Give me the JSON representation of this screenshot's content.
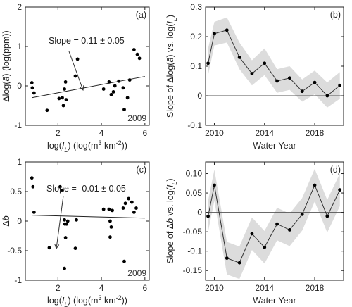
{
  "chart_data": [
    {
      "type": "scatter",
      "panel_label": "(a)",
      "xlabel_parts": [
        "log(",
        "I",
        "L",
        ")  (log(m",
        "3",
        " km",
        "-2",
        "))"
      ],
      "ylabel_parts": [
        "Δlog(",
        "ā",
        ") (log(ppm))"
      ],
      "xlim": [
        0.5,
        6.2
      ],
      "ylim": [
        -1,
        2
      ],
      "xticks": [
        "2",
        "4",
        "6"
      ],
      "yticks": [
        "-1",
        "0",
        "1",
        "2"
      ],
      "annotation": "Slope = 0.11 ± 0.05",
      "year_label": "2009",
      "fit": {
        "x": [
          0.8,
          6.0
        ],
        "y": [
          -0.3,
          0.24
        ]
      },
      "points": [
        {
          "x": 0.8,
          "y": 0.08
        },
        {
          "x": 0.82,
          "y": -0.05
        },
        {
          "x": 0.9,
          "y": -0.18
        },
        {
          "x": 1.5,
          "y": -0.62
        },
        {
          "x": 2.05,
          "y": -0.32
        },
        {
          "x": 2.2,
          "y": -0.3
        },
        {
          "x": 2.25,
          "y": -0.5
        },
        {
          "x": 2.3,
          "y": -0.08
        },
        {
          "x": 2.35,
          "y": 0.1
        },
        {
          "x": 2.38,
          "y": -0.35
        },
        {
          "x": 2.8,
          "y": 0.25
        },
        {
          "x": 2.9,
          "y": 0.68
        },
        {
          "x": 4.1,
          "y": -0.08
        },
        {
          "x": 4.35,
          "y": 0.1
        },
        {
          "x": 4.45,
          "y": -0.22
        },
        {
          "x": 4.55,
          "y": -0.15
        },
        {
          "x": 4.62,
          "y": 0.0
        },
        {
          "x": 4.8,
          "y": 0.12
        },
        {
          "x": 5.0,
          "y": -0.05
        },
        {
          "x": 5.05,
          "y": -0.6
        },
        {
          "x": 5.2,
          "y": -0.3
        },
        {
          "x": 5.3,
          "y": 0.15
        },
        {
          "x": 5.5,
          "y": 0.92
        },
        {
          "x": 5.65,
          "y": 0.8
        },
        {
          "x": 5.75,
          "y": 0.7
        }
      ]
    },
    {
      "type": "line",
      "panel_label": "(b)",
      "xlabel": "Water Year",
      "ylabel_parts": [
        "Slope of Δlog(",
        "ā",
        ") vs. log(",
        "I",
        "L",
        ")"
      ],
      "xlim": [
        2009.3,
        2020.3
      ],
      "ylim": [
        -0.1,
        0.3
      ],
      "xticks": [
        "2010",
        "2014",
        "2018"
      ],
      "yticks": [
        "-0.1",
        "0",
        "0.1",
        "0.2",
        "0.3"
      ],
      "zero_line": 0,
      "x": [
        2009.5,
        2010,
        2011,
        2012,
        2013,
        2014,
        2015,
        2016,
        2017,
        2018,
        2019,
        2020
      ],
      "values": [
        0.11,
        0.21,
        0.222,
        0.13,
        0.075,
        0.11,
        0.05,
        0.06,
        0.015,
        0.045,
        0.0,
        0.035
      ],
      "band_low": [
        0.07,
        0.17,
        0.18,
        0.09,
        0.035,
        0.07,
        0.01,
        0.02,
        -0.02,
        0.005,
        -0.04,
        -0.01
      ],
      "band_high": [
        0.16,
        0.25,
        0.265,
        0.18,
        0.12,
        0.16,
        0.09,
        0.1,
        0.055,
        0.085,
        0.045,
        0.08
      ]
    },
    {
      "type": "scatter",
      "panel_label": "(c)",
      "xlabel_parts": [
        "log(",
        "I",
        "L",
        ")  (log(m",
        "3",
        " km",
        "-2",
        "))"
      ],
      "ylabel_parts": [
        "Δ",
        "b",
        ""
      ],
      "xlim": [
        0.5,
        6.2
      ],
      "ylim": [
        -1,
        1
      ],
      "xticks": [
        "2",
        "4",
        "6"
      ],
      "yticks": [
        "-1",
        "-0.5",
        "0",
        "0.5",
        "1"
      ],
      "annotation": "Slope = -0.01 ± 0.05",
      "year_label": "2009",
      "fit": {
        "x": [
          0.8,
          6.0
        ],
        "y": [
          0.1,
          0.05
        ]
      },
      "points": [
        {
          "x": 0.8,
          "y": 0.73
        },
        {
          "x": 0.85,
          "y": 0.58
        },
        {
          "x": 0.9,
          "y": 0.15
        },
        {
          "x": 1.6,
          "y": -0.45
        },
        {
          "x": 2.1,
          "y": 0.58
        },
        {
          "x": 2.2,
          "y": 0.52
        },
        {
          "x": 2.3,
          "y": 0.02
        },
        {
          "x": 2.32,
          "y": -0.05
        },
        {
          "x": 2.35,
          "y": -0.28
        },
        {
          "x": 2.4,
          "y": -0.05
        },
        {
          "x": 2.45,
          "y": 0.0
        },
        {
          "x": 2.3,
          "y": -0.8
        },
        {
          "x": 2.8,
          "y": -0.46
        },
        {
          "x": 2.85,
          "y": 0.02
        },
        {
          "x": 4.1,
          "y": 0.2
        },
        {
          "x": 4.35,
          "y": 0.2
        },
        {
          "x": 4.4,
          "y": 0.0
        },
        {
          "x": 4.45,
          "y": -0.1
        },
        {
          "x": 4.5,
          "y": 0.18
        },
        {
          "x": 4.4,
          "y": -0.27
        },
        {
          "x": 5.0,
          "y": 0.22
        },
        {
          "x": 5.05,
          "y": -0.68
        },
        {
          "x": 5.1,
          "y": 0.3
        },
        {
          "x": 5.25,
          "y": 0.38
        },
        {
          "x": 5.4,
          "y": 0.32
        },
        {
          "x": 5.5,
          "y": 0.15
        },
        {
          "x": 5.6,
          "y": 0.22
        }
      ]
    },
    {
      "type": "line",
      "panel_label": "(d)",
      "xlabel": "Water Year",
      "ylabel_parts": [
        "Slope of Δ",
        "b",
        " vs. log(",
        "I",
        "L",
        ")"
      ],
      "xlim": [
        2009.3,
        2020.3
      ],
      "ylim": [
        -0.175,
        0.13
      ],
      "xticks": [
        "2010",
        "2014",
        "2018"
      ],
      "yticks": [
        "-0.15",
        "-0.1",
        "-0.05",
        "0",
        "0.05",
        "0.10"
      ],
      "zero_line": 0,
      "x": [
        2009.5,
        2010,
        2011,
        2012,
        2013,
        2014,
        2015,
        2016,
        2017,
        2018,
        2019,
        2020
      ],
      "values": [
        -0.01,
        0.07,
        -0.118,
        -0.13,
        -0.055,
        -0.09,
        -0.03,
        -0.045,
        -0.005,
        0.07,
        -0.01,
        0.058
      ],
      "band_low": [
        -0.05,
        0.03,
        -0.16,
        -0.172,
        -0.097,
        -0.132,
        -0.072,
        -0.087,
        -0.047,
        0.028,
        -0.052,
        0.016
      ],
      "band_high": [
        0.03,
        0.11,
        -0.076,
        -0.088,
        -0.013,
        -0.048,
        0.012,
        -0.003,
        0.037,
        0.112,
        0.032,
        0.1
      ]
    }
  ]
}
